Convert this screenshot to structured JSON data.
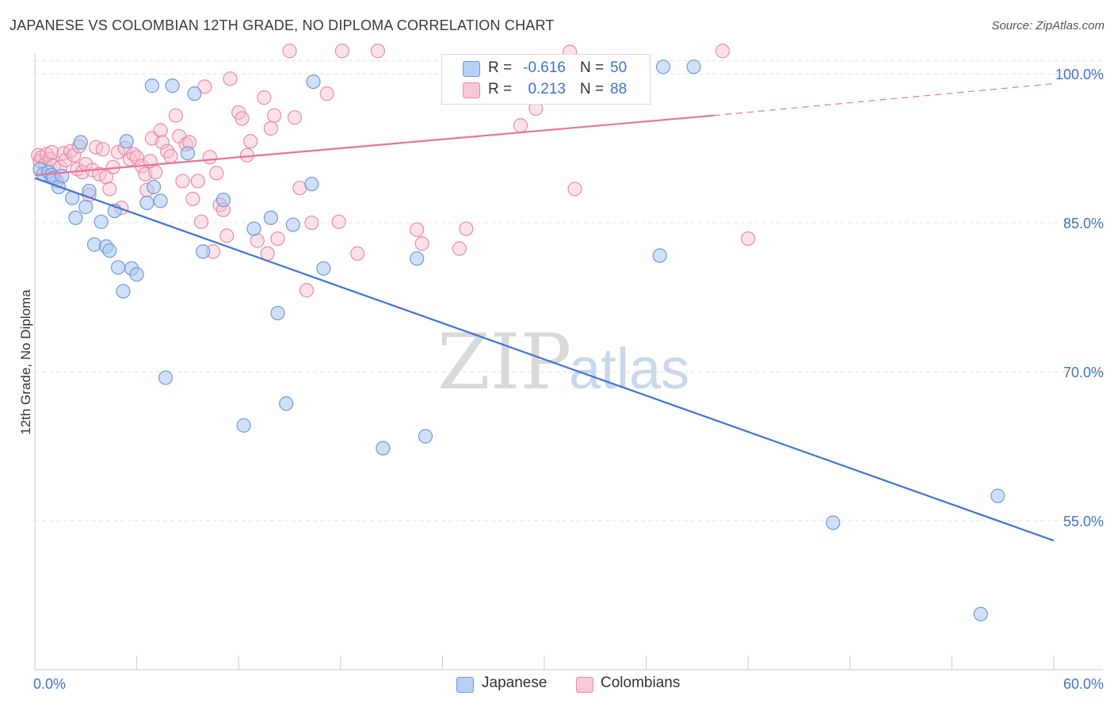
{
  "header": {
    "title": "JAPANESE VS COLOMBIAN 12TH GRADE, NO DIPLOMA CORRELATION CHART",
    "source": "Source: ZipAtlas.com"
  },
  "watermark": {
    "zip": "ZIP",
    "atlas": "atlas"
  },
  "legend": {
    "rows": [
      {
        "r_label": "R =",
        "r_value": "-0.616",
        "n_label": "N =",
        "n_value": "50",
        "fill": "#b8d0f5",
        "stroke": "#6f9bd8"
      },
      {
        "r_label": "R =",
        "r_value": "0.213",
        "n_label": "N =",
        "n_value": "88",
        "fill": "#f9c8d6",
        "stroke": "#e98aa6"
      }
    ]
  },
  "bottom_legend": [
    {
      "label": "Japanese",
      "fill": "#b8d0f5",
      "stroke": "#6f9bd8"
    },
    {
      "label": "Colombians",
      "fill": "#f9c8d6",
      "stroke": "#e98aa6"
    }
  ],
  "chart_data": {
    "type": "scatter",
    "title": "JAPANESE VS COLOMBIAN 12TH GRADE, NO DIPLOMA CORRELATION CHART",
    "xlabel": "",
    "ylabel": "12th Grade, No Diploma",
    "xlim": [
      0,
      60
    ],
    "ylim": [
      40,
      102
    ],
    "x_tick_labels": [
      {
        "value": 0,
        "label": "0.0%"
      },
      {
        "value": 60,
        "label": "60.0%"
      }
    ],
    "y_tick_labels": [
      {
        "value": 55,
        "label": "55.0%"
      },
      {
        "value": 70,
        "label": "70.0%"
      },
      {
        "value": 85,
        "label": "85.0%"
      },
      {
        "value": 100,
        "label": "100.0%"
      }
    ],
    "x_minor_ticks": [
      6,
      12,
      18,
      24,
      30,
      36,
      42,
      48,
      54,
      60
    ],
    "grid": true,
    "colors": {
      "japanese": "#3e74d1",
      "colombians": "#e8739a"
    },
    "series": [
      {
        "name": "Japanese",
        "points": [
          [
            0.3,
            90.4
          ],
          [
            0.5,
            89.9
          ],
          [
            0.8,
            90.1
          ],
          [
            1.0,
            89.8
          ],
          [
            1.1,
            89.5
          ],
          [
            1.4,
            88.6
          ],
          [
            1.6,
            89.7
          ],
          [
            2.2,
            87.5
          ],
          [
            2.4,
            85.5
          ],
          [
            2.7,
            93.1
          ],
          [
            3.0,
            86.6
          ],
          [
            3.2,
            88.2
          ],
          [
            3.5,
            82.8
          ],
          [
            3.9,
            85.1
          ],
          [
            4.2,
            82.6
          ],
          [
            4.4,
            82.2
          ],
          [
            4.7,
            86.2
          ],
          [
            4.9,
            80.5
          ],
          [
            5.2,
            78.1
          ],
          [
            5.4,
            93.2
          ],
          [
            5.7,
            80.4
          ],
          [
            6.0,
            79.8
          ],
          [
            6.6,
            87.0
          ],
          [
            6.9,
            98.8
          ],
          [
            7.0,
            88.6
          ],
          [
            7.4,
            87.2
          ],
          [
            7.7,
            69.4
          ],
          [
            8.1,
            98.8
          ],
          [
            9.0,
            92.0
          ],
          [
            9.4,
            98.0
          ],
          [
            9.9,
            82.1
          ],
          [
            11.1,
            87.3
          ],
          [
            12.3,
            64.6
          ],
          [
            12.9,
            84.4
          ],
          [
            13.9,
            85.5
          ],
          [
            14.3,
            75.9
          ],
          [
            14.8,
            66.8
          ],
          [
            15.2,
            84.8
          ],
          [
            16.3,
            88.9
          ],
          [
            16.4,
            99.2
          ],
          [
            17.0,
            80.4
          ],
          [
            20.5,
            62.3
          ],
          [
            22.5,
            81.4
          ],
          [
            23.0,
            63.5
          ],
          [
            36.8,
            81.7
          ],
          [
            37.0,
            100.7
          ],
          [
            38.8,
            100.7
          ],
          [
            47.0,
            54.8
          ],
          [
            56.7,
            57.5
          ],
          [
            55.7,
            45.6
          ]
        ],
        "trendline": {
          "x": [
            0,
            60
          ],
          "y": [
            89.5,
            53.0
          ],
          "style": "solid"
        }
      },
      {
        "name": "Colombians",
        "points": [
          [
            0.2,
            91.8
          ],
          [
            0.3,
            91.2
          ],
          [
            0.4,
            91.6
          ],
          [
            0.6,
            90.9
          ],
          [
            0.7,
            91.9
          ],
          [
            0.9,
            91.4
          ],
          [
            1.0,
            92.1
          ],
          [
            1.1,
            90.7
          ],
          [
            1.3,
            89.2
          ],
          [
            1.5,
            90.6
          ],
          [
            1.7,
            92.0
          ],
          [
            1.8,
            91.3
          ],
          [
            2.1,
            92.2
          ],
          [
            2.3,
            91.8
          ],
          [
            2.5,
            90.4
          ],
          [
            2.6,
            92.7
          ],
          [
            2.8,
            90.1
          ],
          [
            3.0,
            90.9
          ],
          [
            3.2,
            87.8
          ],
          [
            3.4,
            90.3
          ],
          [
            3.6,
            92.6
          ],
          [
            3.8,
            89.9
          ],
          [
            4.0,
            92.4
          ],
          [
            4.2,
            89.6
          ],
          [
            4.4,
            88.4
          ],
          [
            4.6,
            90.6
          ],
          [
            4.9,
            92.1
          ],
          [
            5.1,
            86.5
          ],
          [
            5.3,
            92.5
          ],
          [
            5.6,
            91.4
          ],
          [
            5.8,
            91.9
          ],
          [
            6.0,
            91.6
          ],
          [
            6.3,
            90.7
          ],
          [
            6.5,
            89.9
          ],
          [
            6.6,
            88.3
          ],
          [
            6.8,
            91.2
          ],
          [
            6.9,
            93.5
          ],
          [
            7.1,
            90.1
          ],
          [
            7.4,
            94.3
          ],
          [
            7.5,
            93.1
          ],
          [
            7.8,
            92.2
          ],
          [
            8.0,
            91.7
          ],
          [
            8.3,
            95.8
          ],
          [
            8.5,
            93.7
          ],
          [
            8.7,
            89.2
          ],
          [
            8.9,
            92.9
          ],
          [
            9.1,
            93.1
          ],
          [
            9.3,
            87.4
          ],
          [
            9.6,
            89.2
          ],
          [
            9.8,
            85.1
          ],
          [
            10.0,
            98.7
          ],
          [
            10.3,
            91.6
          ],
          [
            10.5,
            82.1
          ],
          [
            10.7,
            90.0
          ],
          [
            10.9,
            86.8
          ],
          [
            11.1,
            86.3
          ],
          [
            11.3,
            83.7
          ],
          [
            11.5,
            99.5
          ],
          [
            12.0,
            96.1
          ],
          [
            12.2,
            95.5
          ],
          [
            12.5,
            91.8
          ],
          [
            12.7,
            93.2
          ],
          [
            13.1,
            83.2
          ],
          [
            13.5,
            97.6
          ],
          [
            13.7,
            81.9
          ],
          [
            13.9,
            94.5
          ],
          [
            14.1,
            95.8
          ],
          [
            14.3,
            83.4
          ],
          [
            15.0,
            102.3
          ],
          [
            15.3,
            95.6
          ],
          [
            15.6,
            88.5
          ],
          [
            16.0,
            78.2
          ],
          [
            16.3,
            85.0
          ],
          [
            17.2,
            98.0
          ],
          [
            17.9,
            85.1
          ],
          [
            18.1,
            102.3
          ],
          [
            19.0,
            81.9
          ],
          [
            20.2,
            102.3
          ],
          [
            22.5,
            84.3
          ],
          [
            22.8,
            82.9
          ],
          [
            25.0,
            82.4
          ],
          [
            25.4,
            84.4
          ],
          [
            28.6,
            94.8
          ],
          [
            29.5,
            96.5
          ],
          [
            31.5,
            102.2
          ],
          [
            31.8,
            88.4
          ],
          [
            40.5,
            102.3
          ],
          [
            42.0,
            83.4
          ]
        ],
        "trendline": {
          "x": [
            0,
            40
          ],
          "y": [
            89.8,
            95.8
          ],
          "style": "solid",
          "dashed_extension": {
            "x": [
              40,
              60
            ],
            "y": [
              95.8,
              99.0
            ]
          }
        }
      }
    ]
  }
}
